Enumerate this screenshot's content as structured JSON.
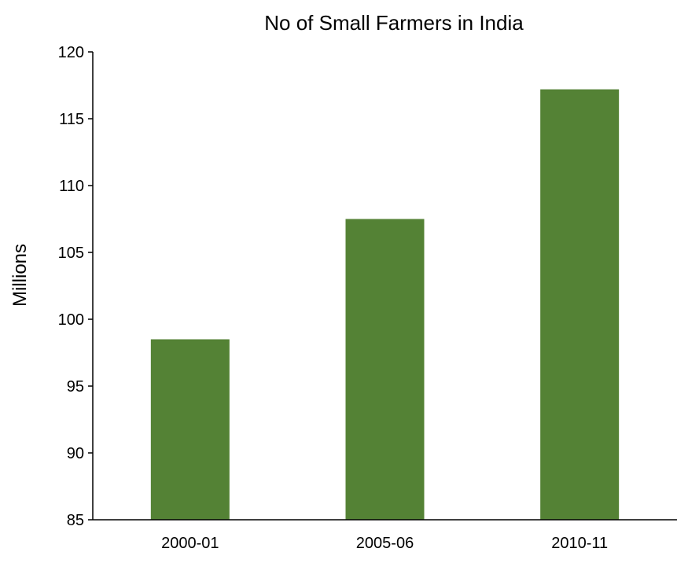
{
  "chart_data": {
    "type": "bar",
    "title": "No of Small Farmers in India",
    "xlabel": "",
    "ylabel": "Millions",
    "categories": [
      "2000-01",
      "2005-06",
      "2010-11"
    ],
    "values": [
      98.5,
      107.5,
      117.2
    ],
    "ylim": [
      85,
      120
    ],
    "yticks": [
      85,
      90,
      95,
      100,
      105,
      110,
      115,
      120
    ],
    "grid": false,
    "legend": "none",
    "bar_color": "#548235",
    "axis_color": "#000000"
  }
}
